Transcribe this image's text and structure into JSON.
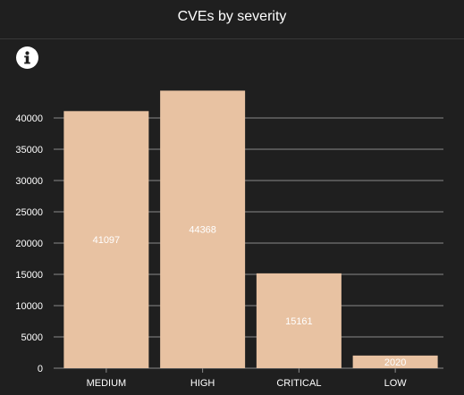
{
  "panel": {
    "title": "CVEs by severity"
  },
  "icons": {
    "info": "info-icon"
  },
  "colors": {
    "background": "#1f1f1f",
    "bar": "#e8c2a2",
    "grid": "#8a8a8a",
    "text": "#ffffff"
  },
  "chart_data": {
    "type": "bar",
    "title": "",
    "xlabel": "",
    "ylabel": "",
    "categories": [
      "MEDIUM",
      "HIGH",
      "CRITICAL",
      "LOW"
    ],
    "values": [
      41097,
      44368,
      15161,
      2020
    ],
    "data_labels": [
      "41097",
      "44368",
      "15161",
      "2020"
    ],
    "ylim": [
      0,
      44368
    ],
    "yticks": [
      0,
      5000,
      10000,
      15000,
      20000,
      25000,
      30000,
      35000,
      40000
    ],
    "grid": true,
    "legend": "none"
  }
}
